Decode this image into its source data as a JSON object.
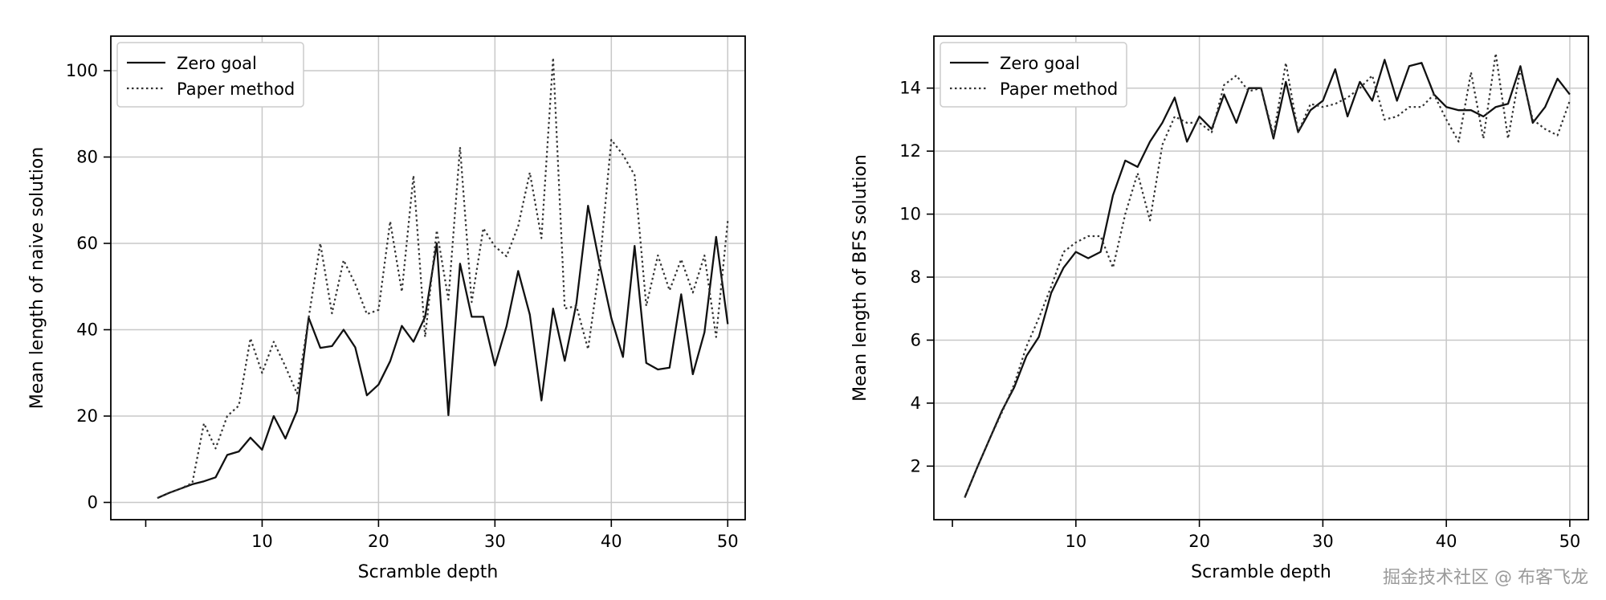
{
  "chart_data": [
    {
      "type": "line",
      "xlabel": "Scramble depth",
      "ylabel": "Mean length of naive solution",
      "xlim": [
        -3,
        51.5
      ],
      "ylim": [
        -4,
        108
      ],
      "xticks": [
        10,
        20,
        30,
        40,
        50
      ],
      "yticks": [
        0,
        20,
        40,
        60,
        80,
        100
      ],
      "grid": true,
      "legend_position": "top-left",
      "x": [
        1,
        2,
        3,
        4,
        5,
        6,
        7,
        8,
        9,
        10,
        11,
        12,
        13,
        14,
        15,
        16,
        17,
        18,
        19,
        20,
        21,
        22,
        23,
        24,
        25,
        26,
        27,
        28,
        29,
        30,
        31,
        32,
        33,
        34,
        35,
        36,
        37,
        38,
        39,
        40,
        41,
        42,
        43,
        44,
        45,
        46,
        47,
        48,
        49,
        50
      ],
      "series": [
        {
          "name": "Zero goal",
          "style": "solid",
          "color": "#111111",
          "values": [
            1,
            2.2,
            3.2,
            4.2,
            4.9,
            5.8,
            11,
            11.8,
            15,
            12.2,
            20,
            14.8,
            21.2,
            42.8,
            35.8,
            36.2,
            40,
            35.9,
            24.8,
            27.3,
            32.7,
            40.9,
            37.2,
            43,
            60,
            20.2,
            55.3,
            43,
            43,
            31.7,
            40.8,
            53.6,
            43.5,
            23.6,
            44.9,
            32.8,
            46.1,
            68.7,
            55.2,
            42.7,
            33.7,
            59.4,
            32.3,
            30.8,
            31.2,
            48.2,
            29.7,
            39.4,
            61.5,
            41.3
          ]
        },
        {
          "name": "Paper method",
          "style": "dotted",
          "color": "#333333",
          "values": [
            1,
            2.2,
            3.2,
            4.5,
            18.3,
            12.5,
            20,
            22.4,
            38,
            30,
            37.2,
            31.5,
            25.2,
            42.8,
            60,
            43.8,
            56.1,
            50.6,
            43.6,
            44.6,
            65.1,
            48.8,
            75.7,
            38.3,
            63,
            47,
            82.3,
            46.4,
            63.5,
            59.3,
            57,
            64,
            76.4,
            61.2,
            103,
            44.9,
            45.5,
            35.5,
            54.9,
            84,
            80.5,
            75.8,
            45.5,
            57.2,
            49.1,
            56.3,
            48.6,
            57.2,
            38.3,
            65.2
          ]
        }
      ]
    },
    {
      "type": "line",
      "xlabel": "Scramble depth",
      "ylabel": "Mean length of BFS solution",
      "xlim": [
        -1.5,
        51.5
      ],
      "ylim": [
        0.3,
        15.65
      ],
      "xticks": [
        10,
        20,
        30,
        40,
        50
      ],
      "yticks": [
        2,
        4,
        6,
        8,
        10,
        12,
        14
      ],
      "grid": true,
      "legend_position": "top-left",
      "x": [
        1,
        2,
        3,
        4,
        5,
        6,
        7,
        8,
        9,
        10,
        11,
        12,
        13,
        14,
        15,
        16,
        17,
        18,
        19,
        20,
        21,
        22,
        23,
        24,
        25,
        26,
        27,
        28,
        29,
        30,
        31,
        32,
        33,
        34,
        35,
        36,
        37,
        38,
        39,
        40,
        41,
        42,
        43,
        44,
        45,
        46,
        47,
        48,
        49,
        50
      ],
      "series": [
        {
          "name": "Zero goal",
          "style": "solid",
          "color": "#111111",
          "values": [
            1,
            1.95,
            2.85,
            3.75,
            4.5,
            5.5,
            6.1,
            7.5,
            8.3,
            8.8,
            8.6,
            8.8,
            10.6,
            11.7,
            11.5,
            12.3,
            12.9,
            13.7,
            12.3,
            13.1,
            12.7,
            13.8,
            12.9,
            14,
            14,
            12.4,
            14.2,
            12.6,
            13.3,
            13.6,
            14.6,
            13.1,
            14.2,
            13.6,
            14.9,
            13.6,
            14.7,
            14.8,
            13.8,
            13.4,
            13.3,
            13.3,
            13.1,
            13.4,
            13.5,
            14.7,
            12.9,
            13.4,
            14.3,
            13.8
          ]
        },
        {
          "name": "Paper method",
          "style": "dotted",
          "color": "#333333",
          "values": [
            1,
            1.95,
            2.85,
            3.7,
            4.6,
            5.8,
            6.7,
            7.7,
            8.8,
            9.1,
            9.3,
            9.3,
            8.3,
            10,
            11.3,
            9.8,
            12.2,
            13.1,
            12.9,
            12.9,
            12.6,
            14.1,
            14.4,
            13.9,
            14,
            12.5,
            14.8,
            12.6,
            13.5,
            13.4,
            13.5,
            13.7,
            14,
            14.4,
            13,
            13.1,
            13.4,
            13.4,
            13.8,
            13,
            12.3,
            14.5,
            12.4,
            15.1,
            12.4,
            14.6,
            13,
            12.7,
            12.5,
            13.6
          ]
        }
      ]
    }
  ],
  "watermark": "掘金技术社区 @ 布客飞龙"
}
